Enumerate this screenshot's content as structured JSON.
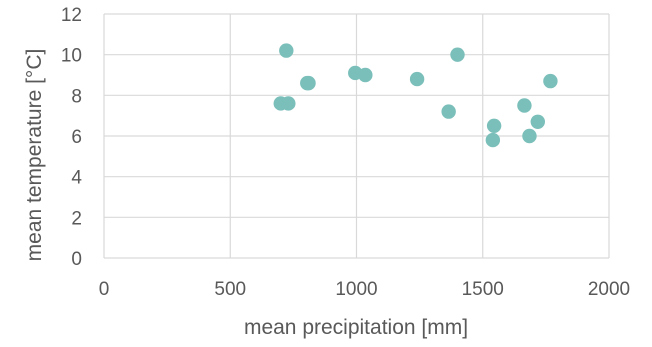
{
  "chart_data": {
    "type": "scatter",
    "xlabel": "mean precipitation [mm]",
    "ylabel": "mean temperature [°C]",
    "xlim": [
      0,
      2000
    ],
    "ylim": [
      0,
      12
    ],
    "x_ticks": [
      0,
      500,
      1000,
      1500,
      2000
    ],
    "y_ticks": [
      0,
      2,
      4,
      6,
      8,
      10,
      12
    ],
    "x_tick_labels": [
      "0",
      "500",
      "1000",
      "1500",
      "2000"
    ],
    "y_tick_labels": [
      "0",
      "2",
      "4",
      "6",
      "8",
      "10",
      "12"
    ],
    "grid": true,
    "marker_color": "#7bbfba",
    "grid_color": "#d9d9d9",
    "series": [
      {
        "points": [
          {
            "x": 700,
            "y": 7.6
          },
          {
            "x": 730,
            "y": 7.6
          },
          {
            "x": 722,
            "y": 10.2
          },
          {
            "x": 805,
            "y": 8.6
          },
          {
            "x": 810,
            "y": 8.6
          },
          {
            "x": 995,
            "y": 9.1
          },
          {
            "x": 1035,
            "y": 9.0
          },
          {
            "x": 1240,
            "y": 8.8
          },
          {
            "x": 1365,
            "y": 7.2
          },
          {
            "x": 1400,
            "y": 10.0
          },
          {
            "x": 1540,
            "y": 5.8
          },
          {
            "x": 1545,
            "y": 6.5
          },
          {
            "x": 1665,
            "y": 7.5
          },
          {
            "x": 1685,
            "y": 6.0
          },
          {
            "x": 1718,
            "y": 6.7
          },
          {
            "x": 1768,
            "y": 8.7
          }
        ]
      }
    ]
  }
}
